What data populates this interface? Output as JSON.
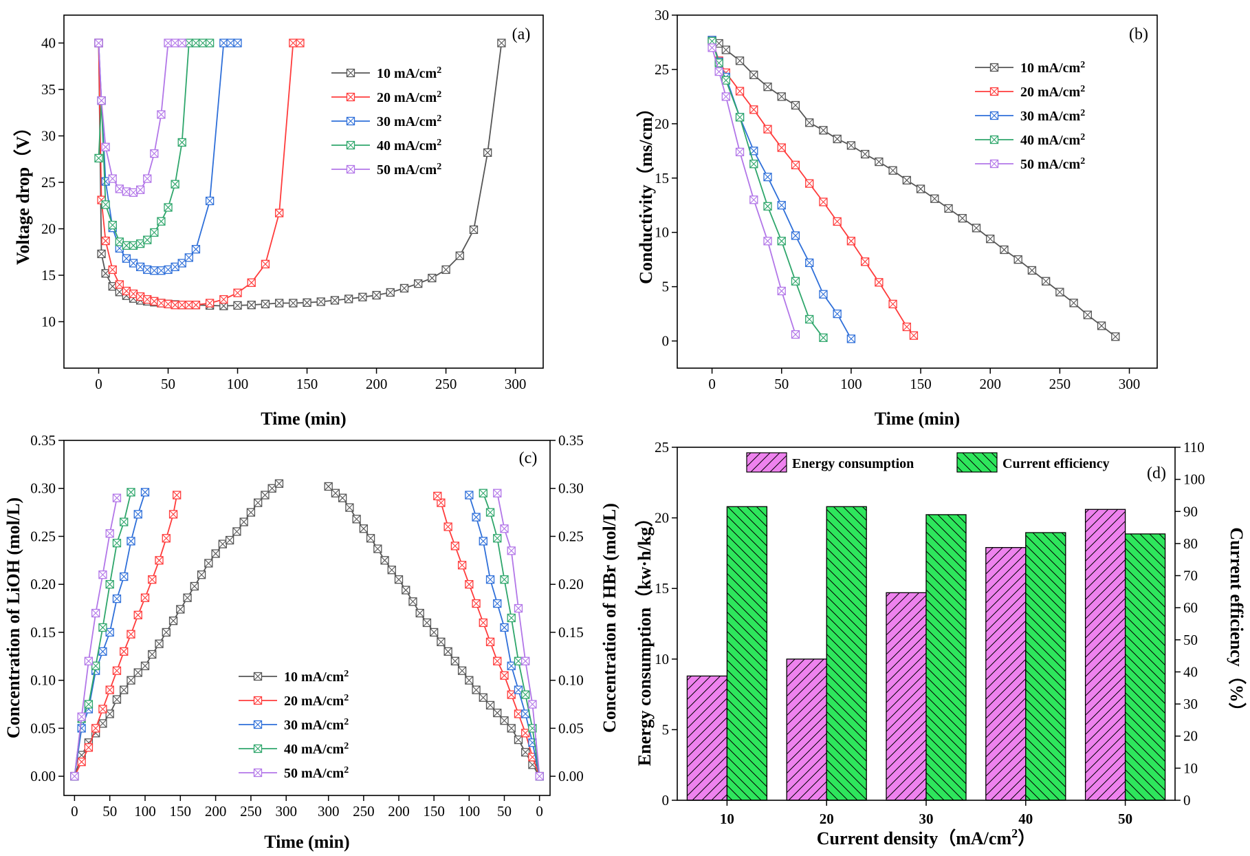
{
  "chart_data": [
    {
      "id": "a",
      "type": "line",
      "panel_label": "(a)",
      "xlabel": "Time (min)",
      "ylabel": "Voltage drop（V）",
      "xlim": [
        -25,
        320
      ],
      "ylim": [
        5,
        43
      ],
      "xticks": [
        0,
        50,
        100,
        150,
        200,
        250,
        300
      ],
      "yticks": [
        10,
        15,
        20,
        25,
        30,
        35,
        40
      ],
      "legend_position": "top-center",
      "series": [
        {
          "name": "10 mA/cm²",
          "color": "#555555",
          "x": [
            0,
            2,
            5,
            10,
            15,
            20,
            25,
            30,
            35,
            40,
            45,
            50,
            55,
            60,
            65,
            70,
            80,
            90,
            100,
            110,
            120,
            130,
            140,
            150,
            160,
            170,
            180,
            190,
            200,
            210,
            220,
            230,
            240,
            250,
            260,
            270,
            280,
            290
          ],
          "y": [
            40,
            17.3,
            15.2,
            13.8,
            13.2,
            12.8,
            12.5,
            12.3,
            12.2,
            12.1,
            12.0,
            11.9,
            11.85,
            11.8,
            11.8,
            11.8,
            11.75,
            11.7,
            11.75,
            11.8,
            11.9,
            12.0,
            12.0,
            12.05,
            12.15,
            12.3,
            12.45,
            12.65,
            12.85,
            13.15,
            13.6,
            14.1,
            14.7,
            15.6,
            17.1,
            19.9,
            28.2,
            40
          ]
        },
        {
          "name": "20 mA/cm²",
          "color": "#ff3b3b",
          "x": [
            0,
            2,
            5,
            10,
            15,
            20,
            25,
            30,
            35,
            40,
            45,
            50,
            55,
            60,
            65,
            70,
            80,
            90,
            100,
            110,
            120,
            130,
            140,
            145
          ],
          "y": [
            40,
            23.1,
            18.7,
            15.6,
            14.0,
            13.3,
            13.0,
            12.7,
            12.4,
            12.2,
            12.0,
            11.9,
            11.8,
            11.8,
            11.8,
            11.8,
            12.0,
            12.4,
            13.1,
            14.2,
            16.2,
            21.7,
            40,
            40
          ]
        },
        {
          "name": "30 mA/cm²",
          "color": "#2e6fd9",
          "x": [
            0,
            2,
            5,
            10,
            15,
            20,
            25,
            30,
            35,
            40,
            45,
            50,
            55,
            60,
            65,
            70,
            80,
            90,
            95,
            100
          ],
          "y": [
            40,
            33.8,
            25.1,
            20.1,
            17.9,
            16.8,
            16.3,
            15.9,
            15.6,
            15.5,
            15.5,
            15.6,
            15.9,
            16.3,
            16.9,
            17.8,
            23.0,
            40,
            40,
            40
          ]
        },
        {
          "name": "40 mA/cm²",
          "color": "#2ea66b",
          "x": [
            0,
            2,
            5,
            10,
            15,
            20,
            25,
            30,
            35,
            40,
            45,
            50,
            55,
            60,
            65,
            70,
            75,
            80
          ],
          "y": [
            27.6,
            33.8,
            22.6,
            20.4,
            18.6,
            18.2,
            18.2,
            18.4,
            18.8,
            19.6,
            20.8,
            22.3,
            24.8,
            29.3,
            40,
            40,
            40,
            40
          ]
        },
        {
          "name": "50 mA/cm²",
          "color": "#b276e8",
          "x": [
            0,
            2,
            5,
            10,
            15,
            20,
            25,
            30,
            35,
            40,
            45,
            50,
            55,
            60
          ],
          "y": [
            40,
            33.8,
            28.8,
            25.4,
            24.3,
            24.0,
            23.9,
            24.2,
            25.4,
            28.1,
            32.3,
            40,
            40,
            40
          ]
        }
      ]
    },
    {
      "id": "b",
      "type": "line",
      "panel_label": "(b)",
      "xlabel": "Time (min)",
      "ylabel": "Conductivity（ms/cm）",
      "xlim": [
        -25,
        320
      ],
      "ylim": [
        -2.5,
        30
      ],
      "xticks": [
        0,
        50,
        100,
        150,
        200,
        250,
        300
      ],
      "yticks": [
        0,
        5,
        10,
        15,
        20,
        25,
        30
      ],
      "legend_position": "top-center",
      "series": [
        {
          "name": "10 mA/cm²",
          "color": "#555555",
          "x": [
            0,
            5,
            10,
            20,
            30,
            40,
            50,
            60,
            70,
            80,
            90,
            100,
            110,
            120,
            130,
            140,
            150,
            160,
            170,
            180,
            190,
            200,
            210,
            220,
            230,
            240,
            250,
            260,
            270,
            280,
            290
          ],
          "y": [
            27.6,
            27.4,
            26.8,
            25.8,
            24.5,
            23.4,
            22.5,
            21.7,
            20.1,
            19.4,
            18.6,
            18.0,
            17.2,
            16.5,
            15.7,
            14.8,
            14.0,
            13.1,
            12.2,
            11.3,
            10.4,
            9.4,
            8.4,
            7.5,
            6.5,
            5.5,
            4.5,
            3.5,
            2.4,
            1.4,
            0.4
          ]
        },
        {
          "name": "20 mA/cm²",
          "color": "#ff3b3b",
          "x": [
            0,
            5,
            10,
            20,
            30,
            40,
            50,
            60,
            70,
            80,
            90,
            100,
            110,
            120,
            130,
            140,
            145
          ],
          "y": [
            27.7,
            25.8,
            24.7,
            23.0,
            21.3,
            19.5,
            17.8,
            16.2,
            14.5,
            12.8,
            11.0,
            9.2,
            7.3,
            5.4,
            3.4,
            1.3,
            0.5
          ]
        },
        {
          "name": "30 mA/cm²",
          "color": "#2e6fd9",
          "x": [
            0,
            5,
            10,
            20,
            30,
            40,
            50,
            60,
            70,
            80,
            90,
            100
          ],
          "y": [
            27.7,
            25.7,
            24.3,
            20.6,
            17.5,
            15.1,
            12.5,
            9.7,
            7.2,
            4.3,
            2.5,
            0.2
          ]
        },
        {
          "name": "40 mA/cm²",
          "color": "#2ea66b",
          "x": [
            0,
            5,
            10,
            20,
            30,
            40,
            50,
            60,
            70,
            80
          ],
          "y": [
            27.6,
            25.6,
            24.0,
            20.6,
            16.3,
            12.4,
            9.2,
            5.5,
            2.0,
            0.3
          ]
        },
        {
          "name": "50 mA/cm²",
          "color": "#b276e8",
          "x": [
            0,
            5,
            10,
            20,
            30,
            40,
            50,
            60
          ],
          "y": [
            27.0,
            24.8,
            22.5,
            17.4,
            13.0,
            9.2,
            4.6,
            0.6
          ]
        }
      ]
    },
    {
      "id": "c",
      "type": "line",
      "panel_label": "(c)",
      "xlabel": "Time (min)",
      "ylabel": "Concentration of LiOH (mol/L)",
      "ylabel_right": "Concentration of HBr (mol/L)",
      "xlim_left": [
        -15,
        330
      ],
      "xlim_right_reversed": [
        330,
        -15
      ],
      "ylim": [
        -0.02,
        0.35
      ],
      "xticks_left": [
        0,
        50,
        100,
        150,
        200,
        250,
        300
      ],
      "xticks_right": [
        300,
        250,
        200,
        150,
        100,
        50,
        0
      ],
      "yticks": [
        "0.00",
        "0.05",
        "0.10",
        "0.15",
        "0.20",
        "0.25",
        "0.30",
        "0.35"
      ],
      "legend_position": "bottom-center",
      "series": [
        {
          "name": "10 mA/cm²",
          "color": "#555555",
          "lioh_x": [
            0,
            10,
            20,
            30,
            40,
            50,
            60,
            70,
            80,
            90,
            100,
            110,
            120,
            130,
            140,
            150,
            160,
            170,
            180,
            190,
            200,
            210,
            220,
            230,
            240,
            250,
            260,
            270,
            280,
            290
          ],
          "lioh_y": [
            0,
            0.022,
            0.035,
            0.045,
            0.055,
            0.065,
            0.08,
            0.09,
            0.1,
            0.108,
            0.115,
            0.127,
            0.138,
            0.15,
            0.162,
            0.174,
            0.186,
            0.198,
            0.21,
            0.222,
            0.232,
            0.242,
            0.246,
            0.255,
            0.265,
            0.275,
            0.285,
            0.293,
            0.3,
            0.305
          ],
          "hbr_x": [
            0,
            10,
            20,
            30,
            40,
            50,
            60,
            70,
            80,
            90,
            100,
            110,
            120,
            130,
            140,
            150,
            160,
            170,
            180,
            190,
            200,
            210,
            220,
            230,
            240,
            250,
            260,
            270,
            280,
            290,
            300
          ],
          "hbr_y": [
            0,
            0.012,
            0.025,
            0.038,
            0.05,
            0.058,
            0.066,
            0.074,
            0.082,
            0.09,
            0.1,
            0.11,
            0.12,
            0.13,
            0.14,
            0.15,
            0.16,
            0.17,
            0.182,
            0.194,
            0.205,
            0.215,
            0.225,
            0.237,
            0.248,
            0.258,
            0.268,
            0.28,
            0.29,
            0.295,
            0.302
          ]
        },
        {
          "name": "20 mA/cm²",
          "color": "#ff3b3b",
          "lioh_x": [
            0,
            10,
            20,
            30,
            40,
            50,
            60,
            70,
            80,
            90,
            100,
            110,
            120,
            130,
            140,
            145
          ],
          "lioh_y": [
            0,
            0.015,
            0.03,
            0.05,
            0.07,
            0.09,
            0.11,
            0.13,
            0.148,
            0.168,
            0.186,
            0.205,
            0.225,
            0.248,
            0.273,
            0.293
          ],
          "hbr_x": [
            0,
            10,
            20,
            30,
            40,
            50,
            60,
            70,
            80,
            90,
            100,
            110,
            120,
            130,
            140,
            145
          ],
          "hbr_y": [
            0,
            0.02,
            0.045,
            0.065,
            0.085,
            0.105,
            0.12,
            0.14,
            0.16,
            0.18,
            0.2,
            0.22,
            0.24,
            0.26,
            0.285,
            0.292
          ]
        },
        {
          "name": "30 mA/cm²",
          "color": "#2e6fd9",
          "lioh_x": [
            0,
            10,
            20,
            30,
            40,
            50,
            60,
            70,
            80,
            90,
            100
          ],
          "lioh_y": [
            0,
            0.05,
            0.07,
            0.11,
            0.13,
            0.15,
            0.185,
            0.208,
            0.245,
            0.273,
            0.296
          ],
          "hbr_x": [
            0,
            10,
            20,
            30,
            40,
            50,
            60,
            70,
            80,
            90,
            100
          ],
          "hbr_y": [
            0,
            0.035,
            0.065,
            0.09,
            0.115,
            0.155,
            0.18,
            0.205,
            0.245,
            0.27,
            0.293
          ]
        },
        {
          "name": "40 mA/cm²",
          "color": "#2ea66b",
          "lioh_x": [
            0,
            10,
            20,
            30,
            40,
            50,
            60,
            70,
            80
          ],
          "lioh_y": [
            0,
            0.06,
            0.075,
            0.115,
            0.155,
            0.2,
            0.243,
            0.265,
            0.296
          ],
          "hbr_x": [
            0,
            10,
            20,
            30,
            40,
            50,
            60,
            70,
            80
          ],
          "hbr_y": [
            0,
            0.05,
            0.085,
            0.12,
            0.165,
            0.205,
            0.248,
            0.275,
            0.295
          ]
        },
        {
          "name": "50 mA/cm²",
          "color": "#b276e8",
          "lioh_x": [
            0,
            10,
            20,
            30,
            40,
            50,
            60
          ],
          "lioh_y": [
            0,
            0.062,
            0.12,
            0.17,
            0.21,
            0.253,
            0.29
          ],
          "hbr_x": [
            0,
            10,
            20,
            30,
            40,
            50,
            60
          ],
          "hbr_y": [
            0,
            0.075,
            0.12,
            0.175,
            0.235,
            0.258,
            0.295
          ]
        }
      ]
    },
    {
      "id": "d",
      "type": "bar",
      "panel_label": "(d)",
      "xlabel": "Current density（mA/cm²）",
      "ylabel": "Energy consumption（kw·h/kg）",
      "ylabel_right": "Current efficiency（%）",
      "categories": [
        "10",
        "20",
        "30",
        "40",
        "50"
      ],
      "ylim_left": [
        0,
        25
      ],
      "ylim_right": [
        0,
        110
      ],
      "yticks_left": [
        0,
        5,
        10,
        15,
        20,
        25
      ],
      "yticks_right": [
        0,
        10,
        20,
        30,
        40,
        50,
        60,
        70,
        80,
        90,
        100,
        110
      ],
      "legend_position": "top",
      "series": [
        {
          "name": "Energy consumption",
          "axis": "left",
          "color": "#ee82ee",
          "values": [
            8.8,
            10.0,
            14.7,
            17.9,
            20.6
          ]
        },
        {
          "name": "Current efficiency",
          "axis": "right",
          "color": "#2ee65c",
          "legend_text_color": "#ff0000",
          "values": [
            91.5,
            91.5,
            89.0,
            83.4,
            83.0
          ]
        }
      ]
    }
  ]
}
